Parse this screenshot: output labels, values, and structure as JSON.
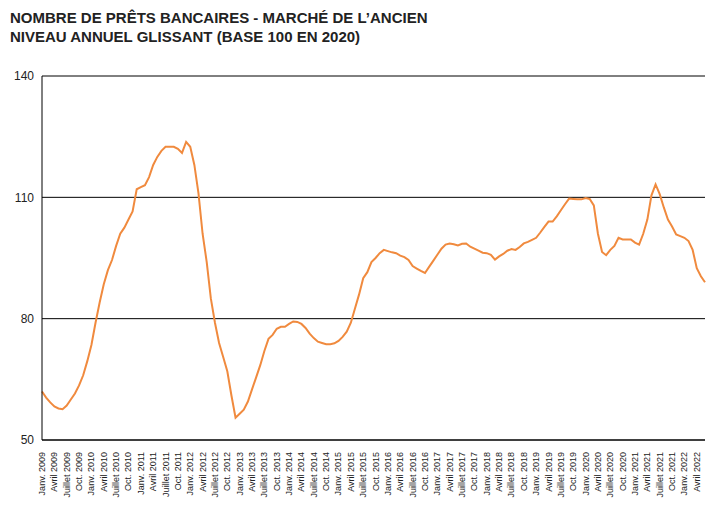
{
  "chart_data": {
    "type": "line",
    "title": "NOMBRE DE PRÊTS BANCAIRES - MARCHÉ DE L’ANCIEN",
    "subtitle": "NIVEAU ANNUEL GLISSANT (BASE 100 EN 2020)",
    "color": "#f08a3e",
    "grid": true,
    "ylim": [
      50,
      140
    ],
    "yticks": [
      50,
      80,
      110,
      140
    ],
    "categories": [
      "Janv. 2009",
      null,
      null,
      "Avril 2009",
      null,
      null,
      "Juillet 2009",
      null,
      null,
      "Oct. 2009",
      null,
      null,
      "Janv. 2010",
      null,
      null,
      "Avril 2010",
      null,
      null,
      "Juillet 2010",
      null,
      null,
      "Oct. 2010",
      null,
      null,
      "Janv. 2011",
      null,
      null,
      "Avril 2011",
      null,
      null,
      "Juillet 2011",
      null,
      null,
      "Oct. 2011",
      null,
      null,
      "Janv. 2012",
      null,
      null,
      "Avril 2012",
      null,
      null,
      "Juillet 2012",
      null,
      null,
      "Oct. 2012",
      null,
      null,
      "Janv. 2013",
      null,
      null,
      "Avril 2013",
      null,
      null,
      "Juillet 2013",
      null,
      null,
      "Oct. 2013",
      null,
      null,
      "Janv. 2014",
      null,
      null,
      "Avril 2014",
      null,
      null,
      "Juillet 2014",
      null,
      null,
      "Oct. 2014",
      null,
      null,
      "Janv. 2015",
      null,
      null,
      "Avril 2015",
      null,
      null,
      "Juillet 2015",
      null,
      null,
      "Oct. 2015",
      null,
      null,
      "Janv. 2016",
      null,
      null,
      "Avril 2016",
      null,
      null,
      "Juillet 2016",
      null,
      null,
      "Oct. 2016",
      null,
      null,
      "Janv. 2017",
      null,
      null,
      "Avril 2017",
      null,
      null,
      "Juillet 2017",
      null,
      null,
      "Oct. 2017",
      null,
      null,
      "Janv. 2018",
      null,
      null,
      "Avril 2018",
      null,
      null,
      "Juillet 2018",
      null,
      null,
      "Oct. 2018",
      null,
      null,
      "Janv. 2019",
      null,
      null,
      "Avril 2019",
      null,
      null,
      "Juillet 2019",
      null,
      null,
      "Oct. 2019",
      null,
      null,
      "Janv. 2020",
      null,
      null,
      "Avril 2020",
      null,
      null,
      "Juillet 2020",
      null,
      null,
      "Oct. 2020",
      null,
      null,
      "Janv. 2021",
      null,
      null,
      "Avril 2021",
      null,
      null,
      "Juillet 2021",
      null,
      null,
      "Oct. 2021",
      null,
      null,
      "Janv. 2022",
      null,
      null,
      "Avril 2022",
      null,
      null
    ],
    "values": [
      62,
      60.5,
      59.3,
      58.3,
      57.8,
      57.6,
      58.5,
      60,
      61.5,
      63.5,
      66,
      69.5,
      73.5,
      79,
      84,
      88.5,
      92,
      94.5,
      98,
      101,
      102.5,
      104.5,
      106.5,
      112,
      112.5,
      113,
      115,
      118,
      120,
      121.5,
      122.5,
      122.5,
      122.5,
      122,
      121,
      123.7,
      122.5,
      118,
      111,
      101,
      94,
      85,
      79,
      74,
      70.5,
      67,
      61,
      55.5,
      56.5,
      57.5,
      59.5,
      62.5,
      65.5,
      68.5,
      72,
      75,
      76,
      77.5,
      78,
      78,
      78.7,
      79.3,
      79.2,
      78.7,
      77.7,
      76.3,
      75.2,
      74.3,
      74,
      73.7,
      73.7,
      73.9,
      74.5,
      75.5,
      76.8,
      79,
      82.5,
      86,
      90,
      91.5,
      94,
      95,
      96.2,
      97,
      96.7,
      96.4,
      96.2,
      95.6,
      95.2,
      94.5,
      93,
      92.4,
      91.8,
      91.3,
      92.8,
      94.3,
      95.8,
      97.3,
      98.3,
      98.6,
      98.4,
      98.1,
      98.5,
      98.6,
      97.8,
      97.3,
      96.8,
      96.3,
      96.2,
      95.8,
      94.6,
      95.4,
      96,
      96.8,
      97.2,
      97,
      97.7,
      98.6,
      99,
      99.5,
      100,
      101.3,
      102.7,
      104,
      104,
      105.3,
      106.8,
      108.3,
      109.7,
      109.6,
      109.5,
      109.5,
      109.8,
      109.6,
      108,
      101,
      96.5,
      95.7,
      97,
      98,
      100,
      99.6,
      99.6,
      99.6,
      98.8,
      98.3,
      101,
      104.5,
      110.5,
      113.2,
      110.8,
      107.5,
      104.5,
      102.8,
      100.8,
      100.4,
      100,
      99.2,
      97,
      92.5,
      90.5,
      89
    ]
  }
}
